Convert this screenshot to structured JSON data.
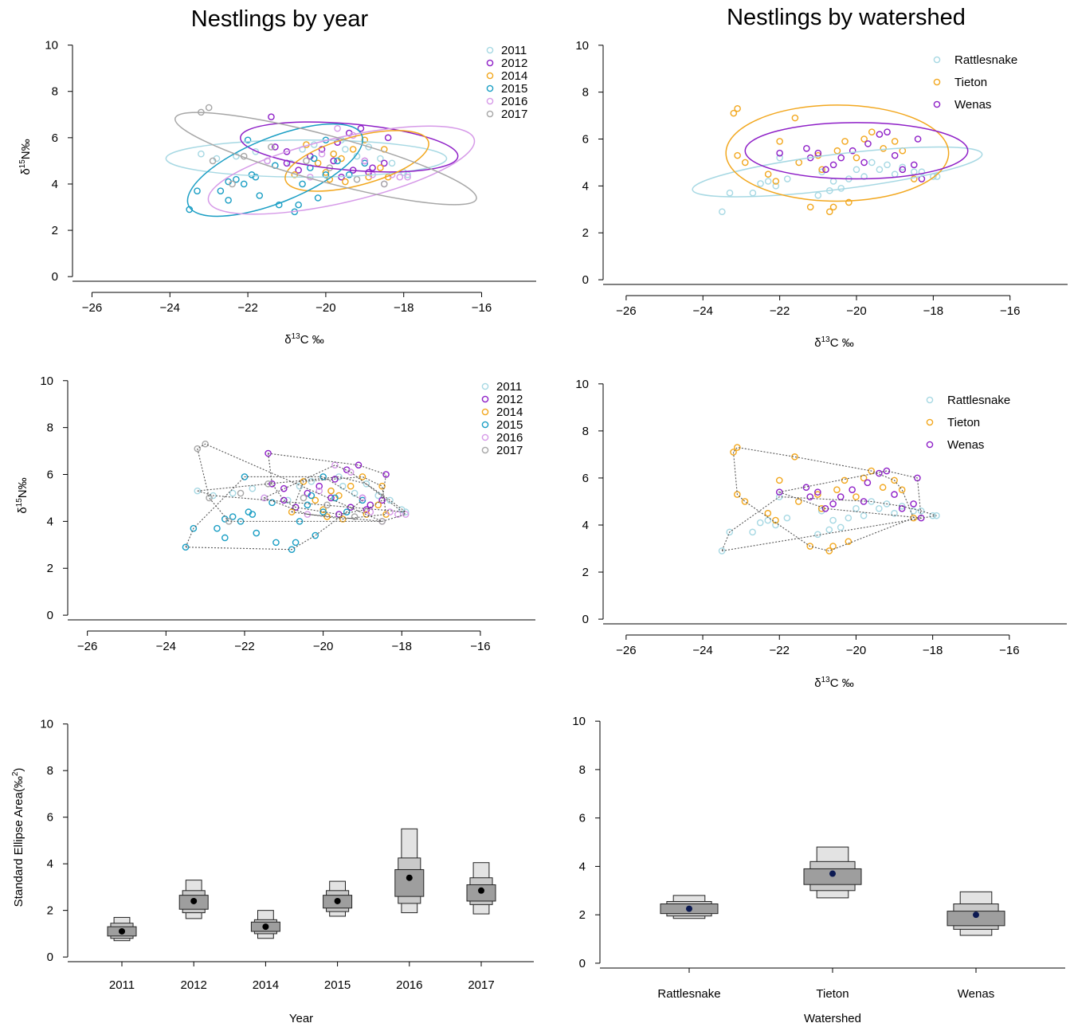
{
  "titles": {
    "left": "Nestlings by year",
    "right": "Nestlings by watershed"
  },
  "colors": {
    "2011": "#a6d8e3",
    "2012": "#8e1fc7",
    "2014": "#f2a71e",
    "2015": "#1a9ec4",
    "2016": "#d69ae8",
    "2017": "#a6a6a6",
    "Rattlesnake": "#a6d8e3",
    "Tieton": "#f2a71e",
    "Wenas": "#8e1fc7",
    "hull": "#555555"
  },
  "chart_data": [
    {
      "id": "year-ellipses",
      "type": "scatter",
      "xlabel": "δ13C ‰",
      "ylabel": "δ15N‰",
      "xlim": [
        -26.5,
        -14.6
      ],
      "ylim": [
        -0.2,
        10.4
      ],
      "xticks": [
        -26,
        -24,
        -22,
        -20,
        -18,
        -16
      ],
      "yticks": [
        0,
        2,
        4,
        6,
        8,
        10
      ],
      "legend_position": "top-right",
      "series": [
        {
          "name": "2011",
          "points": [
            [
              -23.2,
              5.3
            ],
            [
              -22.8,
              5.1
            ],
            [
              -22.3,
              5.2
            ],
            [
              -21.8,
              5.4
            ],
            [
              -21.5,
              5.0
            ],
            [
              -20.6,
              5.5
            ],
            [
              -20.3,
              5.7
            ],
            [
              -19.8,
              5.3
            ],
            [
              -19.5,
              5.5
            ],
            [
              -19.2,
              5.2
            ],
            [
              -18.9,
              5.6
            ],
            [
              -18.6,
              5.1
            ],
            [
              -18.3,
              4.9
            ],
            [
              -18.0,
              4.5
            ],
            [
              -17.9,
              4.4
            ],
            [
              -20.9,
              4.9
            ],
            [
              -19.6,
              5.9
            ]
          ]
        },
        {
          "name": "2012",
          "points": [
            [
              -21.4,
              6.9
            ],
            [
              -21.3,
              5.6
            ],
            [
              -21.0,
              5.4
            ],
            [
              -20.4,
              5.2
            ],
            [
              -20.1,
              5.5
            ],
            [
              -19.7,
              5.8
            ],
            [
              -19.4,
              6.2
            ],
            [
              -19.1,
              6.4
            ],
            [
              -19.0,
              5.0
            ],
            [
              -18.8,
              4.7
            ],
            [
              -18.5,
              4.9
            ],
            [
              -18.4,
              6.0
            ],
            [
              -19.3,
              4.6
            ],
            [
              -20.7,
              4.6
            ],
            [
              -21.0,
              4.9
            ],
            [
              -19.6,
              4.3
            ],
            [
              -18.9,
              4.5
            ],
            [
              -19.8,
              5.0
            ]
          ]
        },
        {
          "name": "2014",
          "points": [
            [
              -20.8,
              4.4
            ],
            [
              -20.2,
              4.9
            ],
            [
              -19.9,
              4.2
            ],
            [
              -19.6,
              5.1
            ],
            [
              -19.3,
              5.5
            ],
            [
              -19.0,
              5.9
            ],
            [
              -18.9,
              4.3
            ],
            [
              -18.6,
              4.7
            ],
            [
              -18.5,
              5.5
            ],
            [
              -19.5,
              4.1
            ],
            [
              -20.5,
              5.7
            ],
            [
              -19.8,
              5.3
            ],
            [
              -18.4,
              4.3
            ],
            [
              -20.0,
              4.5
            ]
          ]
        },
        {
          "name": "2015",
          "points": [
            [
              -23.5,
              2.9
            ],
            [
              -23.3,
              3.7
            ],
            [
              -22.7,
              3.7
            ],
            [
              -22.5,
              4.1
            ],
            [
              -22.5,
              3.3
            ],
            [
              -22.1,
              4.0
            ],
            [
              -22.0,
              5.9
            ],
            [
              -21.9,
              4.4
            ],
            [
              -21.7,
              3.5
            ],
            [
              -21.3,
              4.8
            ],
            [
              -21.2,
              3.1
            ],
            [
              -20.8,
              2.8
            ],
            [
              -20.7,
              3.1
            ],
            [
              -20.6,
              4.0
            ],
            [
              -20.4,
              4.7
            ],
            [
              -20.3,
              5.1
            ],
            [
              -20.2,
              3.4
            ],
            [
              -20.0,
              4.4
            ],
            [
              -20.0,
              5.9
            ],
            [
              -19.7,
              5.0
            ],
            [
              -19.4,
              4.4
            ],
            [
              -19.0,
              4.9
            ],
            [
              -22.3,
              4.2
            ],
            [
              -21.8,
              4.3
            ]
          ]
        },
        {
          "name": "2016",
          "points": [
            [
              -20.4,
              4.3
            ],
            [
              -19.7,
              6.4
            ],
            [
              -19.3,
              6.1
            ],
            [
              -18.8,
              4.4
            ],
            [
              -18.3,
              4.4
            ],
            [
              -20.1,
              5.3
            ],
            [
              -19.0,
              5.0
            ],
            [
              -18.5,
              4.0
            ],
            [
              -18.1,
              4.3
            ],
            [
              -17.9,
              4.3
            ],
            [
              -21.5,
              5.0
            ]
          ]
        },
        {
          "name": "2017",
          "points": [
            [
              -23.2,
              7.1
            ],
            [
              -23.0,
              7.3
            ],
            [
              -22.9,
              5.0
            ],
            [
              -22.4,
              4.0
            ],
            [
              -22.1,
              5.2
            ],
            [
              -21.4,
              5.6
            ],
            [
              -20.5,
              5.0
            ],
            [
              -19.2,
              4.2
            ],
            [
              -18.5,
              4.0
            ],
            [
              -19.9,
              4.7
            ]
          ]
        }
      ],
      "ellipses": [
        {
          "name": "2011",
          "center": [
            -20.5,
            5.1
          ],
          "a": 3.6,
          "b": 0.8,
          "angle": 0
        },
        {
          "name": "2012",
          "center": [
            -19.4,
            5.6
          ],
          "a": 2.8,
          "b": 1.0,
          "angle": -5
        },
        {
          "name": "2014",
          "center": [
            -19.2,
            5.0
          ],
          "a": 1.9,
          "b": 1.05,
          "angle": 15
        },
        {
          "name": "2015",
          "center": [
            -21.3,
            4.6
          ],
          "a": 2.4,
          "b": 1.4,
          "angle": 22
        },
        {
          "name": "2016",
          "center": [
            -19.6,
            4.6
          ],
          "a": 3.5,
          "b": 1.4,
          "angle": 13
        },
        {
          "name": "2017",
          "center": [
            -20.0,
            5.1
          ],
          "a": 4.0,
          "b": 1.0,
          "angle": -15
        }
      ]
    },
    {
      "id": "watershed-ellipses",
      "type": "scatter",
      "xlabel": "δ13C ‰",
      "ylabel": "",
      "xlim": [
        -26.6,
        -14.5
      ],
      "ylim": [
        -0.2,
        10.4
      ],
      "xticks": [
        -26,
        -24,
        -22,
        -20,
        -18,
        -16
      ],
      "yticks": [
        0,
        2,
        4,
        6,
        8,
        10
      ],
      "legend_position": "top-right",
      "series": [
        {
          "name": "Rattlesnake",
          "points": [
            [
              -23.5,
              2.9
            ],
            [
              -23.3,
              3.7
            ],
            [
              -22.7,
              3.7
            ],
            [
              -22.5,
              4.1
            ],
            [
              -22.1,
              4.0
            ],
            [
              -22.0,
              5.2
            ],
            [
              -21.8,
              4.3
            ],
            [
              -21.0,
              3.6
            ],
            [
              -20.7,
              3.8
            ],
            [
              -20.6,
              4.2
            ],
            [
              -20.4,
              3.9
            ],
            [
              -20.2,
              4.3
            ],
            [
              -19.8,
              4.4
            ],
            [
              -19.6,
              5.0
            ],
            [
              -19.4,
              4.7
            ],
            [
              -19.2,
              4.9
            ],
            [
              -19.0,
              4.5
            ],
            [
              -18.8,
              4.8
            ],
            [
              -18.5,
              4.6
            ],
            [
              -18.3,
              4.6
            ],
            [
              -18.0,
              4.4
            ],
            [
              -17.9,
              4.4
            ],
            [
              -20.9,
              4.6
            ],
            [
              -20.0,
              4.7
            ],
            [
              -22.3,
              4.2
            ]
          ]
        },
        {
          "name": "Tieton",
          "points": [
            [
              -23.2,
              7.1
            ],
            [
              -23.1,
              7.3
            ],
            [
              -23.1,
              5.3
            ],
            [
              -22.9,
              5.0
            ],
            [
              -22.3,
              4.5
            ],
            [
              -22.0,
              5.9
            ],
            [
              -21.5,
              5.0
            ],
            [
              -21.2,
              3.1
            ],
            [
              -21.0,
              5.3
            ],
            [
              -20.9,
              4.7
            ],
            [
              -20.7,
              2.9
            ],
            [
              -20.6,
              3.1
            ],
            [
              -20.5,
              5.5
            ],
            [
              -20.3,
              5.9
            ],
            [
              -20.2,
              3.3
            ],
            [
              -20.0,
              5.2
            ],
            [
              -19.8,
              6.0
            ],
            [
              -19.6,
              6.3
            ],
            [
              -19.3,
              5.6
            ],
            [
              -19.0,
              5.9
            ],
            [
              -18.8,
              5.5
            ],
            [
              -18.5,
              4.3
            ],
            [
              -21.6,
              6.9
            ],
            [
              -22.1,
              4.2
            ]
          ]
        },
        {
          "name": "Wenas",
          "points": [
            [
              -21.3,
              5.6
            ],
            [
              -21.0,
              5.4
            ],
            [
              -20.8,
              4.7
            ],
            [
              -20.4,
              5.2
            ],
            [
              -20.1,
              5.5
            ],
            [
              -19.7,
              5.8
            ],
            [
              -19.4,
              6.2
            ],
            [
              -19.2,
              6.3
            ],
            [
              -19.0,
              5.3
            ],
            [
              -18.8,
              4.7
            ],
            [
              -18.5,
              4.9
            ],
            [
              -18.4,
              6.0
            ],
            [
              -19.8,
              5.0
            ],
            [
              -20.6,
              4.9
            ],
            [
              -21.2,
              5.2
            ],
            [
              -18.3,
              4.3
            ],
            [
              -22.0,
              5.4
            ]
          ]
        }
      ],
      "ellipses": [
        {
          "name": "Rattlesnake",
          "center": [
            -20.5,
            4.6
          ],
          "a": 3.8,
          "b": 0.75,
          "angle": 7
        },
        {
          "name": "Tieton",
          "center": [
            -20.5,
            5.4
          ],
          "a": 2.9,
          "b": 2.05,
          "angle": 0
        },
        {
          "name": "Wenas",
          "center": [
            -20.0,
            5.5
          ],
          "a": 2.9,
          "b": 1.2,
          "angle": 0
        }
      ]
    },
    {
      "id": "year-hulls",
      "type": "scatter",
      "xlabel": "",
      "ylabel": "δ15N‰",
      "xlim": [
        -26.5,
        -14.6
      ],
      "ylim": [
        -0.2,
        10.4
      ],
      "xticks": [
        -26,
        -24,
        -22,
        -20,
        -18,
        -16
      ],
      "yticks": [
        0,
        2,
        4,
        6,
        8,
        10
      ],
      "legend_position": "top-right",
      "hulls": "convex hull per series (dotted)",
      "series_source": "year-ellipses"
    },
    {
      "id": "watershed-hulls",
      "type": "scatter",
      "xlabel": "δ13C ‰",
      "ylabel": "",
      "xlim": [
        -26.6,
        -14.5
      ],
      "ylim": [
        -0.2,
        10.4
      ],
      "xticks": [
        -26,
        -24,
        -22,
        -20,
        -18,
        -16
      ],
      "yticks": [
        0,
        2,
        4,
        6,
        8,
        10
      ],
      "legend_position": "top-right",
      "hulls": "convex hull per series (dotted)",
      "series_source": "watershed-ellipses"
    },
    {
      "id": "year-sea",
      "type": "box",
      "xlabel": "Year",
      "ylabel": "Standard Ellipse Area(‰2)",
      "ylim": [
        -0.2,
        10.4
      ],
      "yticks": [
        0,
        2,
        4,
        6,
        8,
        10
      ],
      "categories": [
        "2011",
        "2012",
        "2014",
        "2015",
        "2016",
        "2017"
      ],
      "mode": [
        1.1,
        2.4,
        1.3,
        2.4,
        3.4,
        2.85
      ],
      "ci50": [
        [
          0.9,
          1.3
        ],
        [
          2.05,
          2.65
        ],
        [
          1.1,
          1.5
        ],
        [
          2.1,
          2.65
        ],
        [
          2.6,
          3.75
        ],
        [
          2.4,
          3.1
        ]
      ],
      "ci75": [
        [
          0.8,
          1.45
        ],
        [
          1.9,
          2.85
        ],
        [
          1.0,
          1.6
        ],
        [
          1.95,
          2.85
        ],
        [
          2.3,
          4.25
        ],
        [
          2.25,
          3.4
        ]
      ],
      "ci95": [
        [
          0.7,
          1.7
        ],
        [
          1.65,
          3.3
        ],
        [
          0.8,
          2.0
        ],
        [
          1.75,
          3.25
        ],
        [
          1.9,
          5.5
        ],
        [
          1.85,
          4.05
        ]
      ]
    },
    {
      "id": "watershed-sea",
      "type": "box",
      "xlabel": "Watershed",
      "ylabel": "",
      "ylim": [
        -0.2,
        10.4
      ],
      "yticks": [
        0,
        2,
        4,
        6,
        8,
        10
      ],
      "categories": [
        "Rattlesnake",
        "Tieton",
        "Wenas"
      ],
      "mode": [
        2.25,
        3.7,
        2.0
      ],
      "ci50": [
        [
          2.05,
          2.45
        ],
        [
          3.25,
          3.9
        ],
        [
          1.55,
          2.15
        ]
      ],
      "ci75": [
        [
          1.95,
          2.55
        ],
        [
          3.0,
          4.2
        ],
        [
          1.4,
          2.45
        ]
      ],
      "ci95": [
        [
          1.85,
          2.8
        ],
        [
          2.7,
          4.8
        ],
        [
          1.15,
          2.95
        ]
      ]
    }
  ]
}
